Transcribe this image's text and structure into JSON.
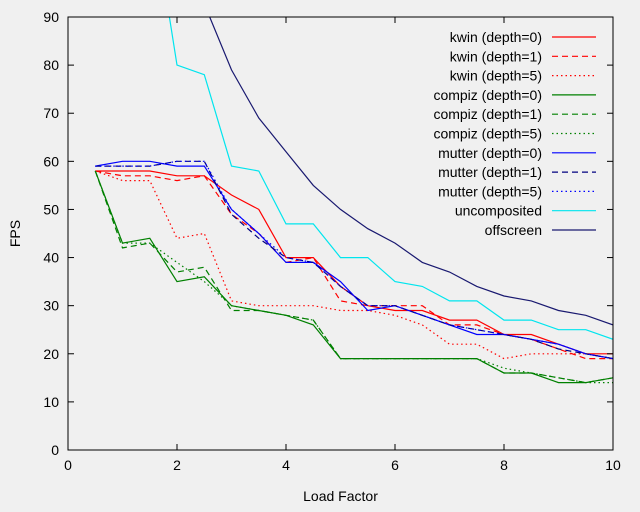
{
  "chart_data": {
    "type": "line",
    "title": "",
    "xlabel": "Load Factor",
    "ylabel": "FPS",
    "xlim": [
      0,
      10
    ],
    "ylim": [
      0,
      90
    ],
    "xticks": [
      0,
      2,
      4,
      6,
      8,
      10
    ],
    "yticks": [
      0,
      10,
      20,
      30,
      40,
      50,
      60,
      70,
      80,
      90
    ],
    "grid": false,
    "legend_position": "top-right",
    "series": [
      {
        "name": "kwin (depth=0)",
        "color": "#ff0000",
        "dash": "solid",
        "x": [
          0.5,
          1.0,
          1.5,
          2.0,
          2.5,
          3.0,
          3.5,
          4.0,
          4.5,
          5.0,
          5.5,
          6.0,
          6.5,
          7.0,
          7.5,
          8.0,
          8.5,
          9.0,
          9.5,
          10.0
        ],
        "y": [
          58,
          58,
          58,
          57,
          57,
          53,
          50,
          40,
          40,
          34,
          30,
          29,
          29,
          27,
          27,
          24,
          24,
          22,
          20,
          20
        ]
      },
      {
        "name": "kwin (depth=1)",
        "color": "#ff0000",
        "dash": "dashed",
        "x": [
          0.5,
          1.0,
          1.5,
          2.0,
          2.5,
          3.0,
          3.5,
          4.0,
          4.5,
          5.0,
          5.5,
          6.0,
          6.5,
          7.0,
          7.5,
          8.0,
          8.5,
          9.0,
          9.5,
          10.0
        ],
        "y": [
          58,
          57,
          57,
          56,
          57,
          49,
          45,
          39,
          40,
          31,
          30,
          30,
          30,
          26,
          26,
          24,
          23,
          21,
          19,
          19
        ]
      },
      {
        "name": "kwin (depth=5)",
        "color": "#ff0000",
        "dash": "dotted",
        "x": [
          0.5,
          1.0,
          1.5,
          2.0,
          2.5,
          3.0,
          3.5,
          4.0,
          4.5,
          5.0,
          5.5,
          6.0,
          6.5,
          7.0,
          7.5,
          8.0,
          8.5,
          9.0,
          9.5,
          10.0
        ],
        "y": [
          58,
          56,
          56,
          44,
          45,
          31,
          30,
          30,
          30,
          29,
          29,
          28,
          26,
          22,
          22,
          19,
          20,
          20,
          20,
          19
        ]
      },
      {
        "name": "compiz (depth=0)",
        "color": "#008000",
        "dash": "solid",
        "x": [
          0.5,
          1.0,
          1.5,
          2.0,
          2.5,
          3.0,
          3.5,
          4.0,
          4.5,
          5.0,
          5.5,
          6.0,
          6.5,
          7.0,
          7.5,
          8.0,
          8.5,
          9.0,
          9.5,
          10.0
        ],
        "y": [
          58,
          43,
          44,
          35,
          36,
          30,
          29,
          28,
          26,
          19,
          19,
          19,
          19,
          19,
          19,
          16,
          16,
          14,
          14,
          15
        ]
      },
      {
        "name": "compiz (depth=1)",
        "color": "#008000",
        "dash": "dashed",
        "x": [
          0.5,
          1.0,
          1.5,
          2.0,
          2.5,
          3.0,
          3.5,
          4.0,
          4.5,
          5.0,
          5.5,
          6.0,
          6.5,
          7.0,
          7.5,
          8.0,
          8.5,
          9.0,
          9.5,
          10.0
        ],
        "y": [
          58,
          42,
          43,
          37,
          38,
          29,
          29,
          28,
          27,
          19,
          19,
          19,
          19,
          19,
          19,
          16,
          16,
          15,
          14,
          15
        ]
      },
      {
        "name": "compiz (depth=5)",
        "color": "#008000",
        "dash": "dotted",
        "x": [
          0.5,
          1.0,
          1.5,
          2.0,
          2.5,
          3.0,
          3.5,
          4.0,
          4.5,
          5.0,
          5.5,
          6.0,
          6.5,
          7.0,
          7.5,
          8.0,
          8.5,
          9.0,
          9.5,
          10.0
        ],
        "y": [
          58,
          43,
          43,
          39,
          35,
          30,
          29,
          28,
          27,
          19,
          19,
          19,
          19,
          19,
          19,
          17,
          16,
          15,
          14,
          14
        ]
      },
      {
        "name": "mutter (depth=0)",
        "color": "#0000ff",
        "dash": "solid",
        "x": [
          0.5,
          1.0,
          1.5,
          2.0,
          2.5,
          3.0,
          3.5,
          4.0,
          4.5,
          5.0,
          5.5,
          6.0,
          6.5,
          7.0,
          7.5,
          8.0,
          8.5,
          9.0,
          9.5,
          10.0
        ],
        "y": [
          59,
          60,
          60,
          59,
          59,
          50,
          45,
          39,
          39,
          35,
          29,
          30,
          28,
          26,
          24,
          24,
          23,
          22,
          20,
          19
        ]
      },
      {
        "name": "mutter (depth=1)",
        "color": "#000080",
        "dash": "dashed",
        "x": [
          0.5,
          1.0,
          1.5,
          2.0,
          2.5,
          3.0,
          3.5,
          4.0,
          4.5,
          5.0,
          5.5,
          6.0,
          6.5,
          7.0,
          7.5,
          8.0,
          8.5,
          9.0,
          9.5,
          10.0
        ],
        "y": [
          59,
          59,
          59,
          60,
          60,
          49,
          44,
          40,
          39,
          34,
          30,
          30,
          28,
          26,
          25,
          24,
          23,
          21,
          20,
          19
        ]
      },
      {
        "name": "mutter (depth=5)",
        "color": "#0000ff",
        "dash": "dotted",
        "x": [
          0.5,
          1.0,
          1.5,
          2.0,
          2.5,
          3.0,
          3.5,
          4.0,
          4.5,
          5.0,
          5.5,
          6.0,
          6.5,
          7.0,
          7.5,
          8.0,
          8.5,
          9.0,
          9.5,
          10.0
        ],
        "y": [
          59,
          59,
          59,
          60,
          60,
          50,
          45,
          40,
          39,
          34,
          30,
          30,
          28,
          26,
          25,
          24,
          23,
          22,
          20,
          19
        ]
      },
      {
        "name": "uncomposited",
        "color": "#00e5ee",
        "dash": "solid",
        "x": [
          1.86,
          2.0,
          2.5,
          3.0,
          3.5,
          4.0,
          4.5,
          5.0,
          5.5,
          6.0,
          6.5,
          7.0,
          7.5,
          8.0,
          8.5,
          9.0,
          9.5,
          10.0
        ],
        "y": [
          90,
          80,
          78,
          59,
          58,
          47,
          47,
          40,
          40,
          35,
          34,
          31,
          31,
          27,
          27,
          25,
          25,
          23
        ]
      },
      {
        "name": "offscreen",
        "color": "#191970",
        "dash": "solid",
        "x": [
          2.6,
          3.0,
          3.5,
          4.0,
          4.5,
          5.0,
          5.5,
          6.0,
          6.5,
          7.0,
          7.5,
          8.0,
          8.5,
          9.0,
          9.5,
          10.0
        ],
        "y": [
          90,
          79,
          69,
          62,
          55,
          50,
          46,
          43,
          39,
          37,
          34,
          32,
          31,
          29,
          28,
          26
        ]
      }
    ]
  }
}
